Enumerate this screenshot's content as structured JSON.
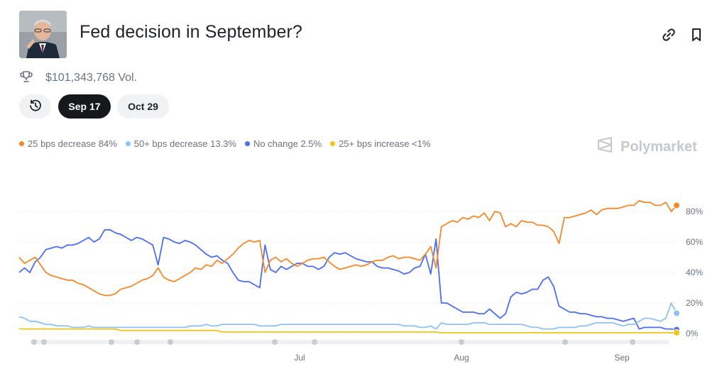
{
  "header": {
    "title": "Fed decision in September?",
    "volume": "$101,343,768 Vol.",
    "avatar_icon": "person-portrait-icon",
    "link_icon": "link-icon",
    "bookmark_icon": "bookmark-icon"
  },
  "tabs": {
    "history_icon": "clock-history-icon",
    "dates": [
      "Sep 17",
      "Oct 29"
    ],
    "active": "Sep 17"
  },
  "brand": {
    "name": "Polymarket",
    "logo_icon": "polymarket-logo-icon"
  },
  "chart_data": {
    "type": "line",
    "x_ticks": [
      "Jul",
      "Aug",
      "Sep"
    ],
    "y_ticks": [
      "0%",
      "20%",
      "40%",
      "60%",
      "80%"
    ],
    "ylim": [
      0,
      100
    ],
    "grid": true,
    "legend_position": "top-left",
    "series": [
      {
        "name": "25 bps decrease",
        "legend": "25 bps decrease 84%",
        "color": "#f4892b",
        "current": 84,
        "values": [
          50,
          46,
          48,
          50,
          45,
          40,
          38,
          37,
          36,
          35,
          35,
          33,
          32,
          30,
          28,
          26,
          25,
          25,
          26,
          29,
          30,
          31,
          33,
          35,
          36,
          38,
          43,
          37,
          35,
          34,
          36,
          38,
          40,
          43,
          42,
          45,
          44,
          48,
          46,
          49,
          52,
          56,
          59,
          61,
          60,
          61,
          40,
          48,
          50,
          47,
          49,
          46,
          44,
          46,
          48,
          49,
          49,
          50,
          47,
          44,
          42,
          43,
          44,
          45,
          44,
          45,
          47,
          48,
          48,
          50,
          51,
          49,
          50,
          50,
          49,
          48,
          52,
          57,
          43,
          70,
          72,
          74,
          73,
          76,
          75,
          77,
          76,
          79,
          74,
          80,
          79,
          70,
          72,
          70,
          74,
          73,
          73,
          71,
          71,
          70,
          67,
          59,
          76,
          76,
          77,
          78,
          79,
          81,
          78,
          81,
          82,
          82,
          82,
          83,
          84,
          84,
          87,
          86,
          86,
          84,
          84,
          86,
          80,
          84
        ]
      },
      {
        "name": "No change",
        "legend": "No change 2.5%",
        "color": "#4c6ef5",
        "current": 2.5,
        "values": [
          40,
          43,
          40,
          47,
          50,
          55,
          56,
          57,
          56,
          58,
          58,
          59,
          61,
          63,
          60,
          62,
          68,
          68,
          66,
          65,
          63,
          61,
          63,
          62,
          60,
          58,
          45,
          63,
          62,
          60,
          59,
          61,
          60,
          58,
          55,
          52,
          50,
          51,
          48,
          46,
          40,
          35,
          34,
          34,
          32,
          30,
          58,
          42,
          40,
          44,
          42,
          44,
          46,
          46,
          44,
          44,
          42,
          44,
          50,
          53,
          52,
          53,
          51,
          49,
          48,
          47,
          47,
          44,
          43,
          43,
          42,
          41,
          39,
          40,
          43,
          44,
          52,
          39,
          62,
          20,
          20,
          18,
          16,
          14,
          14,
          14,
          13,
          13,
          16,
          13,
          10,
          13,
          24,
          27,
          26,
          27,
          29,
          29,
          35,
          37,
          31,
          18,
          16,
          14,
          14,
          13,
          13,
          12,
          11,
          11,
          10,
          10,
          9,
          8,
          9,
          10,
          3,
          4,
          4,
          4,
          4,
          3,
          3,
          2.5
        ]
      },
      {
        "name": "50+ bps decrease",
        "legend": "50+ bps decrease 13.3%",
        "color": "#8fc1f5",
        "current": 13.3,
        "values": [
          11,
          10,
          8,
          8,
          7,
          6,
          6,
          5,
          5,
          5,
          4,
          4,
          4,
          5,
          4,
          4,
          4,
          4,
          4,
          4,
          4,
          4,
          4,
          4,
          4,
          4,
          4,
          4,
          4,
          4,
          4,
          4,
          5,
          5,
          5,
          6,
          5,
          5,
          6,
          6,
          6,
          6,
          6,
          6,
          6,
          5,
          5,
          5,
          5,
          6,
          6,
          6,
          6,
          6,
          6,
          6,
          6,
          6,
          6,
          6,
          6,
          6,
          6,
          6,
          6,
          6,
          6,
          6,
          6,
          6,
          6,
          6,
          5,
          5,
          5,
          4,
          4,
          5,
          3,
          7,
          6,
          6,
          6,
          6,
          6,
          7,
          7,
          7,
          6,
          6,
          6,
          6,
          6,
          6,
          6,
          5,
          4,
          4,
          3,
          3,
          3,
          4,
          4,
          4,
          4,
          5,
          5,
          6,
          7,
          7,
          7,
          7,
          6,
          5,
          6,
          6,
          8,
          10,
          10,
          9,
          8,
          10,
          20,
          13.3
        ]
      },
      {
        "name": "25+ bps increase",
        "legend": "25+ bps increase <1%",
        "color": "#f5c518",
        "current": 0.5,
        "values": [
          3,
          3,
          3,
          3,
          3,
          3,
          3,
          3,
          3,
          3,
          3,
          3,
          3,
          3,
          3,
          3,
          3,
          3,
          3,
          2,
          2,
          2,
          2,
          2,
          2,
          2,
          2,
          2,
          2,
          2,
          2,
          2,
          2,
          2,
          2,
          2,
          2,
          2,
          1,
          1,
          1,
          1,
          1,
          1,
          1,
          1,
          1,
          1,
          1,
          1,
          1,
          1,
          1,
          1,
          1,
          1,
          1,
          1,
          1,
          1,
          1,
          1,
          1,
          1,
          1,
          1,
          1,
          1,
          1,
          1,
          1,
          1,
          1,
          1,
          1,
          1,
          1,
          1,
          1,
          0.5,
          0.5,
          0.5,
          0.5,
          0.5,
          0.5,
          0.5,
          0.5,
          0.5,
          0.5,
          0.5,
          0.5,
          0.5,
          0.5,
          0.5,
          0.5,
          0.5,
          0.5,
          0.5,
          0.5,
          0.5,
          0.5,
          0.5,
          0.5,
          0.5,
          0.5,
          0.5,
          0.5,
          0.5,
          0.5,
          0.5,
          0.5,
          0.5,
          0.5,
          0.5,
          0.5,
          0.5,
          0.5,
          0.5,
          0.5,
          0.5,
          0.5,
          0.5,
          0.5,
          0.5
        ]
      }
    ]
  }
}
